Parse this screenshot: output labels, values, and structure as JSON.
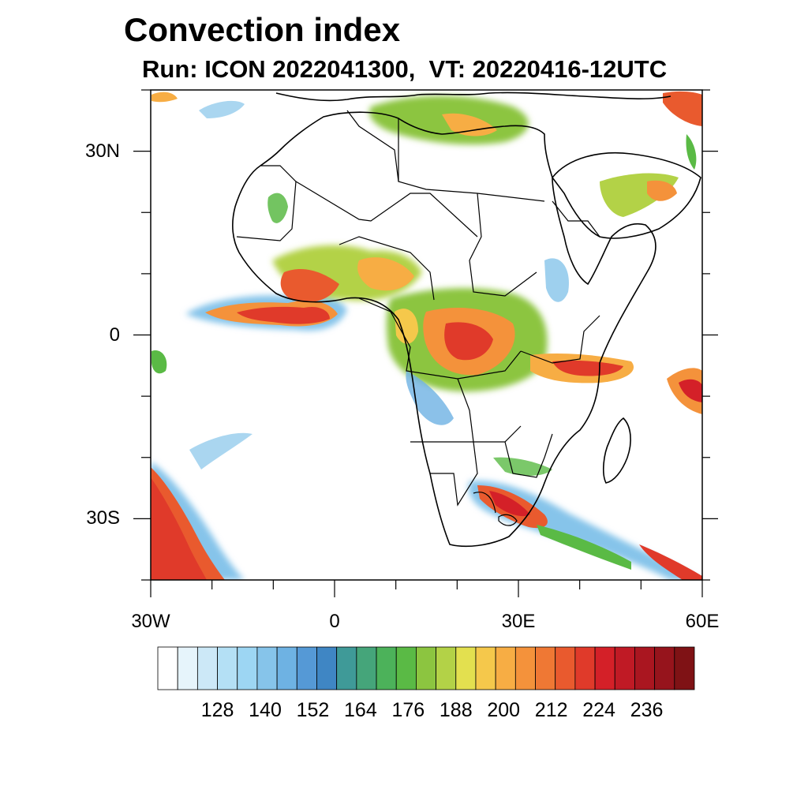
{
  "title": "Convection index",
  "subtitle": "Run: ICON 2022041300,  VT: 20220416-12UTC",
  "map": {
    "lon_range": [
      -30,
      60
    ],
    "lat_range": [
      -40,
      40
    ],
    "y_ticks": [
      {
        "label": "30N",
        "lat": 30
      },
      {
        "label": "0",
        "lat": 0
      },
      {
        "label": "30S",
        "lat": -30
      }
    ],
    "x_ticks": [
      {
        "label": "30W",
        "lon": -30
      },
      {
        "label": "0",
        "lon": 0
      },
      {
        "label": "30E",
        "lon": 30
      },
      {
        "label": "60E",
        "lon": 60
      }
    ],
    "coastline_color": "#000000"
  },
  "colorbar": {
    "labels": [
      "128",
      "140",
      "152",
      "164",
      "176",
      "188",
      "200",
      "212",
      "224",
      "236"
    ],
    "colors": [
      "#ffffff",
      "#e6f4fb",
      "#cce8f7",
      "#b4e0f5",
      "#9dd6f3",
      "#86c4ea",
      "#6eb2e3",
      "#5599d6",
      "#3f86c4",
      "#3f9a98",
      "#45a57a",
      "#4cb25a",
      "#5aba45",
      "#8cc540",
      "#b3d247",
      "#e3e04f",
      "#f5c84b",
      "#f7ad44",
      "#f4923b",
      "#ef7834",
      "#e95a2e",
      "#e03a2a",
      "#d42028",
      "#c01a25",
      "#aa1620",
      "#96141c",
      "#7f1215"
    ]
  }
}
